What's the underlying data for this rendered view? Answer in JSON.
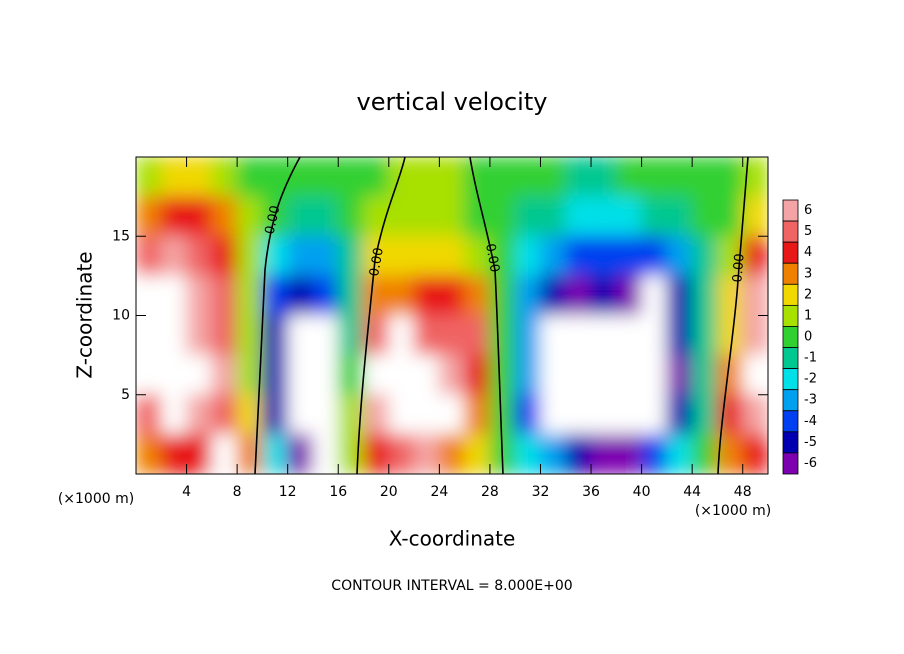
{
  "chart_data": {
    "type": "contour",
    "title": "vertical velocity",
    "x_label": "X-coordinate",
    "y_label": "Z-coordinate",
    "x_unit": "(×1000 m)",
    "footer": "CONTOUR INTERVAL = 8.000E+00",
    "xlim": [
      0,
      50
    ],
    "ylim": [
      0,
      20
    ],
    "xticks": [
      4,
      8,
      12,
      16,
      20,
      24,
      28,
      32,
      36,
      40,
      44,
      48
    ],
    "yticks": [
      5,
      10,
      15
    ],
    "x": [
      1,
      3,
      5,
      7,
      9,
      11,
      13,
      15,
      17,
      19,
      21,
      23,
      25,
      27,
      29,
      31,
      33,
      35,
      37,
      39,
      41,
      43,
      45,
      47,
      49
    ],
    "y": [
      18.75,
      16.25,
      13.75,
      11.25,
      8.75,
      6.25,
      3.75,
      1.25
    ],
    "z": [
      [
        1,
        2,
        2,
        1,
        0,
        0,
        0,
        0,
        0,
        0,
        1,
        1,
        1,
        0,
        0,
        0,
        0,
        -1,
        -1,
        0,
        0,
        0,
        0,
        0,
        1
      ],
      [
        3,
        4,
        4,
        3,
        1,
        0,
        -1,
        -1,
        0,
        1,
        1,
        1,
        1,
        0,
        0,
        -1,
        -1,
        -2,
        -2,
        -2,
        -1,
        -1,
        0,
        0,
        2
      ],
      [
        5,
        6,
        5,
        4,
        1,
        -2,
        -3,
        -3,
        -1,
        2,
        2,
        2,
        2,
        1,
        0,
        -2,
        -3,
        -4,
        -4,
        -4,
        -4,
        -3,
        -1,
        1,
        4
      ],
      [
        8,
        7,
        6,
        5,
        1,
        -4,
        -5,
        -4,
        -1,
        3,
        3,
        4,
        4,
        3,
        0,
        -3,
        -5,
        -6,
        -5,
        -6,
        -7,
        -5,
        -1,
        2,
        6
      ],
      [
        8,
        8,
        6,
        5,
        1,
        -5,
        -8,
        -7,
        -1,
        5,
        7,
        5,
        5,
        5,
        0,
        -3,
        -8,
        -8,
        -8,
        -8,
        -8,
        -5,
        -1,
        2,
        6
      ],
      [
        8,
        7,
        7,
        6,
        1,
        -5,
        -8,
        -8,
        0,
        7,
        8,
        8,
        6,
        4,
        0,
        -3,
        -8,
        -8,
        -8,
        -8,
        -8,
        -6,
        -1,
        3,
        8
      ],
      [
        5,
        7,
        6,
        5,
        2,
        -5,
        -8,
        -8,
        1,
        6,
        8,
        8,
        7,
        3,
        0,
        -4,
        -7,
        -8,
        -8,
        -8,
        -8,
        -5,
        -1,
        4,
        6
      ],
      [
        3,
        4,
        4,
        7,
        3,
        -2,
        -6,
        -7,
        1,
        4,
        5,
        6,
        3,
        2,
        0,
        -2,
        -3,
        -5,
        -6,
        -6,
        -4,
        -2,
        0,
        3,
        4
      ]
    ],
    "contour_labels": [
      "0.00",
      "0.00",
      "0.00",
      "0.00"
    ],
    "colorbar": {
      "levels": [
        6,
        5,
        4,
        3,
        2,
        1,
        0,
        -1,
        -2,
        -3,
        -4,
        -5,
        -6
      ],
      "colors": [
        "#f4a4a4",
        "#f06464",
        "#e81818",
        "#f08000",
        "#f0d800",
        "#a8e000",
        "#30d030",
        "#00c890",
        "#00e0e8",
        "#00a0f0",
        "#0040f0",
        "#0000b0",
        "#7c00b0"
      ],
      "out_of_range_color": "#ffffff"
    }
  }
}
